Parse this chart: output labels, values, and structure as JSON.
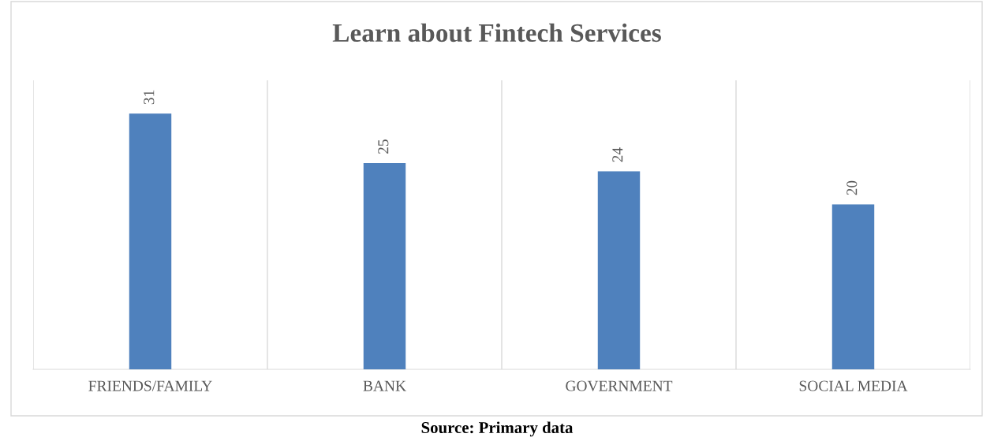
{
  "chart_data": {
    "type": "bar",
    "title": "Learn about Fintech Services",
    "categories": [
      "FRIENDS/FAMILY",
      "BANK",
      "GOVERNMENT",
      "SOCIAL MEDIA"
    ],
    "values": [
      31,
      25,
      24,
      20
    ],
    "color": "#4f81bd",
    "data_labels": true,
    "grid": "x",
    "legend": false,
    "annotations": [
      "Source: Primary data"
    ]
  }
}
